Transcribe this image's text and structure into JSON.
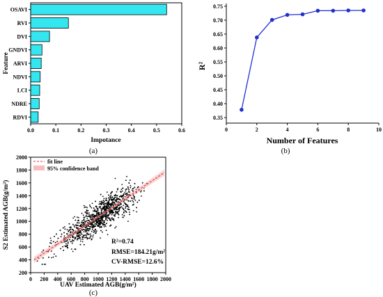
{
  "chart_data": [
    {
      "type": "bar",
      "orientation": "horizontal",
      "panel_label": "(a)",
      "xlabel": "Impotance",
      "ylabel": "Feature",
      "categories": [
        "OSAVI",
        "RVI",
        "DVI",
        "GNDVI",
        "ARVI",
        "NDVI",
        "LCI",
        "NDRE",
        "RDVI"
      ],
      "values": [
        0.54,
        0.15,
        0.075,
        0.045,
        0.042,
        0.038,
        0.036,
        0.034,
        0.03
      ],
      "xlim": [
        0,
        0.6
      ],
      "xticks": [
        "0.0",
        "0.1",
        "0.2",
        "0.3",
        "0.4",
        "0.5",
        "0.6"
      ],
      "bar_color": "#33e6f0",
      "grid": false
    },
    {
      "type": "line",
      "panel_label": "(b)",
      "xlabel": "Number of Features",
      "ylabel": "R²",
      "x": [
        1,
        2,
        3,
        4,
        5,
        6,
        7,
        8,
        9
      ],
      "y": [
        0.378,
        0.638,
        0.701,
        0.719,
        0.721,
        0.734,
        0.734,
        0.735,
        0.735
      ],
      "xlim": [
        0,
        10
      ],
      "ylim": [
        0.33,
        0.76
      ],
      "xticks": [
        "0",
        "2",
        "4",
        "6",
        "8",
        "10"
      ],
      "yticks": [
        "0.35",
        "0.40",
        "0.45",
        "0.50",
        "0.55",
        "0.60",
        "0.65",
        "0.70",
        "0.75"
      ],
      "line_color": "#1f2fd0",
      "grid": false
    },
    {
      "type": "scatter",
      "panel_label": "(c)",
      "xlabel": "UAV Estimated AGB(g/m²)",
      "ylabel": "S2 Estimated AGB(g/m²)",
      "xlim": [
        0,
        2000
      ],
      "ylim": [
        200,
        2000
      ],
      "xticks": [
        "0",
        "200",
        "400",
        "600",
        "800",
        "1000",
        "1200",
        "1400",
        "1600",
        "1800",
        "2000"
      ],
      "yticks": [
        "200",
        "400",
        "600",
        "800",
        "1000",
        "1200",
        "1400",
        "1600",
        "1800",
        "2000"
      ],
      "legend": [
        "fit line",
        "95% confidence band"
      ],
      "legend_position": "top-left",
      "fit_line": {
        "x": [
          50,
          1980
        ],
        "y": [
          400,
          1760
        ],
        "color": "#e03030"
      },
      "band_color": "#f4a0a0",
      "point_count": 1500,
      "point_x_range": [
        100,
        1950
      ],
      "point_y_range": [
        330,
        1860
      ],
      "annotations": [
        "R²=0.74",
        "RMSE=184.21g/m²",
        "CV-RMSE=12.6%"
      ],
      "grid": false
    }
  ]
}
